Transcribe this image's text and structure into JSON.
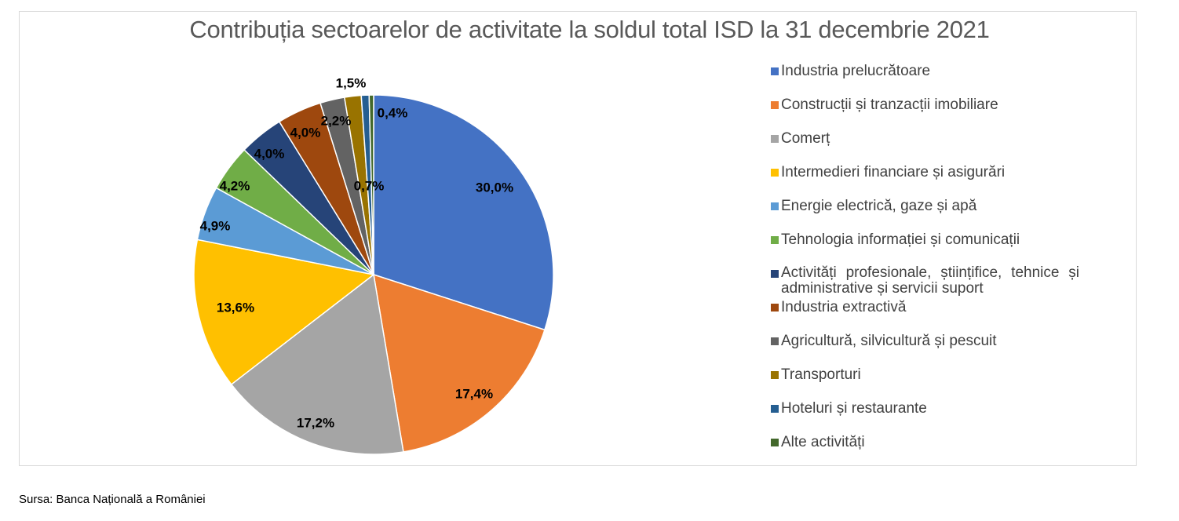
{
  "chart_data": {
    "type": "pie",
    "title": "Contribuția sectoarelor de activitate la soldul total ISD la 31 decembrie 2021",
    "legend_position": "right",
    "slices": [
      {
        "name": "Industria prelucrătoare",
        "value": 30.0,
        "label": "30,0%",
        "color": "#4472C4"
      },
      {
        "name": "Construcții și tranzacții imobiliare",
        "value": 17.4,
        "label": "17,4%",
        "color": "#ED7D31"
      },
      {
        "name": "Comerț",
        "value": 17.2,
        "label": "17,2%",
        "color": "#A5A5A5"
      },
      {
        "name": "Intermedieri financiare și asigurări",
        "value": 13.6,
        "label": "13,6%",
        "color": "#FFC000"
      },
      {
        "name": "Energie electrică, gaze și apă",
        "value": 4.9,
        "label": "4,9%",
        "color": "#5B9BD5"
      },
      {
        "name": "Tehnologia informației și comunicații",
        "value": 4.2,
        "label": "4,2%",
        "color": "#70AD47"
      },
      {
        "name": "Activități profesionale, științifice, tehnice și administrative și servicii suport",
        "value": 4.0,
        "label": "4,0%",
        "color": "#264478"
      },
      {
        "name": "Industria extractivă",
        "value": 4.0,
        "label": "4,0%",
        "color": "#9E480E"
      },
      {
        "name": "Agricultură, silvicultură și pescuit",
        "value": 2.2,
        "label": "2,2%",
        "color": "#636363"
      },
      {
        "name": "Transporturi",
        "value": 1.5,
        "label": "1,5%",
        "color": "#997300"
      },
      {
        "name": "Hoteluri și restaurante",
        "value": 0.7,
        "label": "0,7%",
        "color": "#255E91"
      },
      {
        "name": "Alte activități",
        "value": 0.4,
        "label": "0,4%",
        "color": "#43682B"
      }
    ]
  },
  "source": "Sursa: Banca Națională a României"
}
